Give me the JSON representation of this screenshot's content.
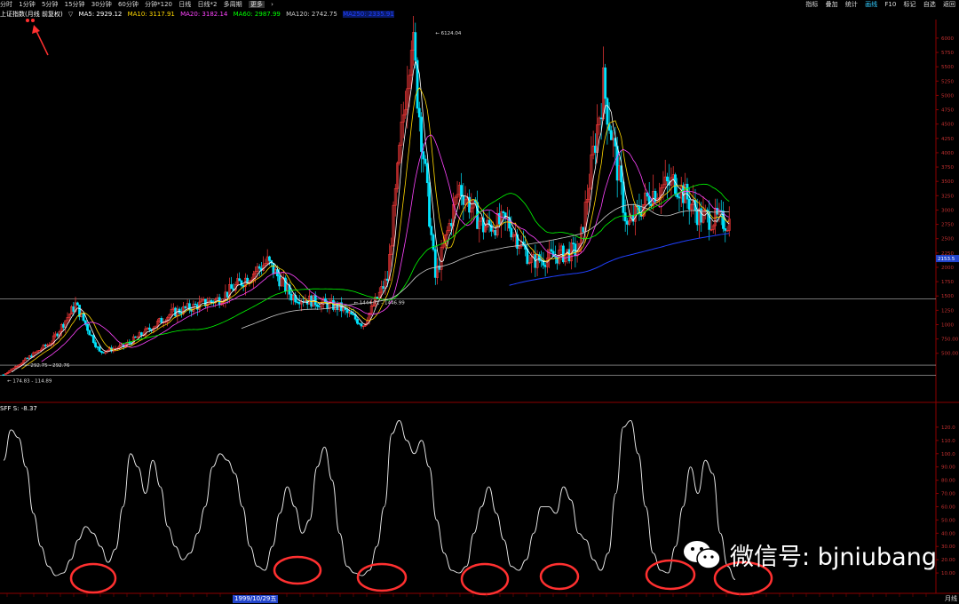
{
  "toolbar": {
    "periods": [
      "分时",
      "1分钟",
      "5分钟",
      "15分钟",
      "30分钟",
      "60分钟",
      "分钟*120",
      "日线",
      "日线*2",
      "多周期"
    ],
    "more": "更多",
    "right": [
      "指标",
      "叠加",
      "统计",
      "画线",
      "F10",
      "标记",
      "自选",
      "返回"
    ],
    "active_right": "画线"
  },
  "header": {
    "title": "上证指数(月线 前复权)",
    "ma5": "MA5: 2929.12",
    "ma10": "MA10: 3117.91",
    "ma20": "MA20: 3182.14",
    "ma60": "MA60: 2987.99",
    "ma120": "MA120: 2742.75",
    "ma250": "MA250: 2335.91"
  },
  "colors": {
    "up": "#ff3b3b",
    "down": "#00e5ff",
    "ma5": "#ffffff",
    "ma10": "#ffd700",
    "ma20": "#ff44ff",
    "ma60": "#00ff00",
    "ma120": "#cccccc",
    "ma250": "#2040ff",
    "axis": "#8b0000",
    "circle": "#ff3030"
  },
  "chart_data": [
    {
      "type": "candlestick",
      "title": "上证指数(月线 前复权)",
      "ylim": [
        0,
        6200
      ],
      "ytick_labels": [
        "6000",
        "5750",
        "5500",
        "5250",
        "5000",
        "4750",
        "4500",
        "4250",
        "4000",
        "3750",
        "3500",
        "3250",
        "3000",
        "2750",
        "2500",
        "2250",
        "2000",
        "1750",
        "1500",
        "1250",
        "1000",
        "750.00",
        "500.00"
      ],
      "ytick_values": [
        6000,
        5750,
        5500,
        5250,
        5000,
        4750,
        4500,
        4250,
        4000,
        3750,
        3500,
        3250,
        3000,
        2750,
        2500,
        2250,
        2000,
        1750,
        1500,
        1250,
        1000,
        750,
        500
      ],
      "price_marker": "2153.5",
      "annotations": {
        "peak": "6124.04",
        "range1": "1444.71 - 1446.99",
        "range2": "292.75 - 292.76",
        "range3": "174.83 - 114.89"
      },
      "close_series": [
        {
          "x": 1990,
          "y": 127
        },
        {
          "x": 1992,
          "y": 700
        },
        {
          "x": 1993,
          "y": 1350
        },
        {
          "x": 1994,
          "y": 520
        },
        {
          "x": 1995,
          "y": 620
        },
        {
          "x": 1996,
          "y": 900
        },
        {
          "x": 1997,
          "y": 1200
        },
        {
          "x": 1999,
          "y": 1450
        },
        {
          "x": 2001,
          "y": 2100
        },
        {
          "x": 2002,
          "y": 1500
        },
        {
          "x": 2004,
          "y": 1300
        },
        {
          "x": 2005,
          "y": 1000
        },
        {
          "x": 2006,
          "y": 1800
        },
        {
          "x": 2007,
          "y": 6124
        },
        {
          "x": 2008,
          "y": 1820
        },
        {
          "x": 2009,
          "y": 3400
        },
        {
          "x": 2010,
          "y": 2700
        },
        {
          "x": 2011,
          "y": 2800
        },
        {
          "x": 2012,
          "y": 2100
        },
        {
          "x": 2013,
          "y": 2200
        },
        {
          "x": 2014,
          "y": 2300
        },
        {
          "x": 2015,
          "y": 5178
        },
        {
          "x": 2016,
          "y": 2700
        },
        {
          "x": 2017,
          "y": 3300
        },
        {
          "x": 2018,
          "y": 3500
        },
        {
          "x": 2019,
          "y": 2900
        },
        {
          "x": 2020,
          "y": 2800
        }
      ]
    },
    {
      "type": "line",
      "title": "SFF",
      "label": "SFF S: -8.37",
      "ylim": [
        0,
        130
      ],
      "ytick_labels": [
        "120.0",
        "110.0",
        "100.0",
        "90.00",
        "80.00",
        "70.00",
        "60.00",
        "50.00",
        "40.00",
        "30.00",
        "20.00",
        "10.00"
      ],
      "ytick_values": [
        120,
        110,
        100,
        90,
        80,
        70,
        60,
        50,
        40,
        30,
        20,
        10
      ],
      "values": [
        95,
        118,
        112,
        90,
        55,
        30,
        15,
        8,
        10,
        20,
        35,
        45,
        40,
        30,
        18,
        28,
        60,
        100,
        90,
        70,
        95,
        75,
        45,
        30,
        20,
        25,
        40,
        60,
        90,
        100,
        95,
        85,
        60,
        30,
        15,
        12,
        30,
        55,
        75,
        60,
        40,
        50,
        90,
        105,
        80,
        40,
        15,
        10,
        8,
        12,
        30,
        60,
        115,
        125,
        110,
        100,
        110,
        90,
        50,
        25,
        12,
        10,
        15,
        40,
        60,
        75,
        55,
        35,
        15,
        12,
        20,
        40,
        60,
        60,
        55,
        75,
        65,
        40,
        35,
        20,
        12,
        25,
        70,
        120,
        125,
        100,
        60,
        25,
        12,
        10,
        30,
        60,
        90,
        70,
        95,
        85,
        40,
        15,
        5
      ]
    }
  ],
  "bottom": {
    "date_marker": "1999/10/29五",
    "period_button": "月线"
  },
  "watermark": {
    "text": "微信号: bjniubang"
  }
}
